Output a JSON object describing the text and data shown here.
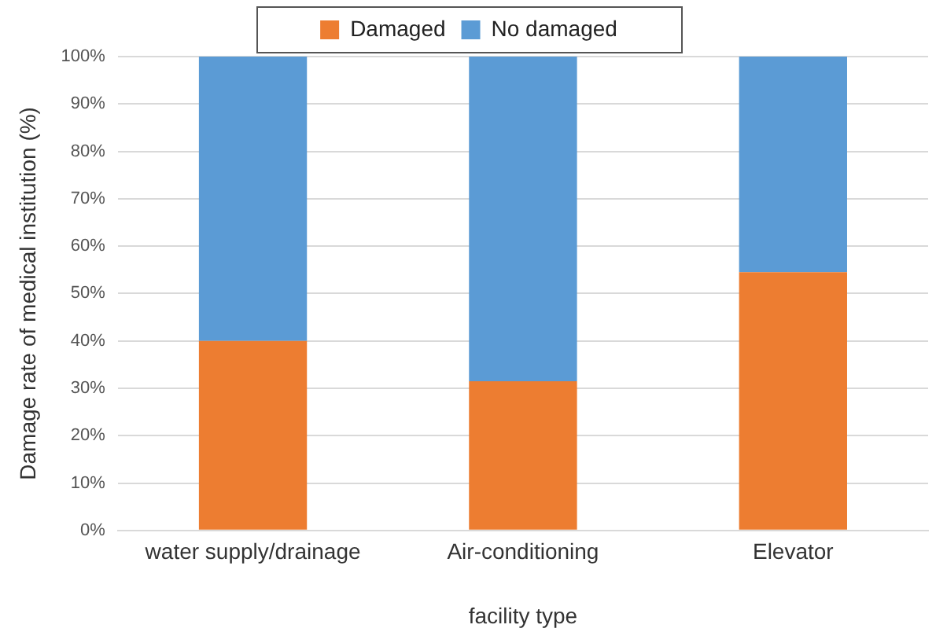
{
  "chart_data": {
    "type": "bar",
    "stacked": true,
    "xlabel": "facility type",
    "ylabel": "Damage rate of medical institution (%)",
    "categories": [
      "water supply/drainage",
      "Air-conditioning",
      "Elevator"
    ],
    "series": [
      {
        "name": "Damaged",
        "color": "#ed7d31",
        "values": [
          40,
          31.5,
          54.5
        ]
      },
      {
        "name": "No damaged",
        "color": "#5b9bd5",
        "values": [
          60,
          68.5,
          45.5
        ]
      }
    ],
    "ylim": [
      0,
      100
    ],
    "yticks": [
      {
        "value": 0,
        "label": "0%"
      },
      {
        "value": 10,
        "label": "10%"
      },
      {
        "value": 20,
        "label": "20%"
      },
      {
        "value": 30,
        "label": "30%"
      },
      {
        "value": 40,
        "label": "40%"
      },
      {
        "value": 50,
        "label": "50%"
      },
      {
        "value": 60,
        "label": "60%"
      },
      {
        "value": 70,
        "label": "70%"
      },
      {
        "value": 80,
        "label": "80%"
      },
      {
        "value": 90,
        "label": "90%"
      },
      {
        "value": 100,
        "label": "100%"
      }
    ],
    "grid": "y",
    "legend": "top"
  }
}
